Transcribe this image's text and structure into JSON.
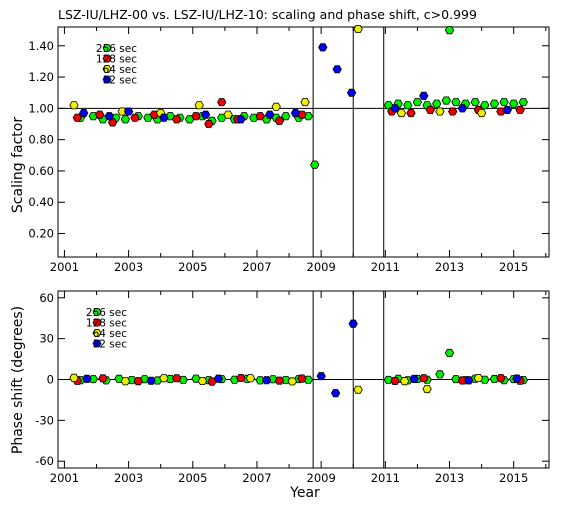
{
  "chart_data": [
    {
      "type": "scatter",
      "title": "LSZ-IU/LHZ-00 vs. LSZ-IU/LHZ-10: scaling and phase shift, c>0.999",
      "xlabel": "",
      "ylabel": "Scaling factor",
      "xlim": [
        2000.8,
        2016.1
      ],
      "ylim": [
        0.05,
        1.52
      ],
      "x_ticks": [
        2001,
        2003,
        2005,
        2007,
        2009,
        2011,
        2013,
        2015
      ],
      "x_tick_labels": [
        "2001",
        "2003",
        "2005",
        "2007",
        "2009",
        "2011",
        "2013",
        "2015"
      ],
      "y_ticks": [
        0.2,
        0.4,
        0.6,
        0.8,
        1.0,
        1.2,
        1.4
      ],
      "y_tick_labels": [
        "0.20",
        "0.40",
        "0.60",
        "0.80",
        "1.00",
        "1.20",
        "1.40"
      ],
      "reference_line": 1.0,
      "vertical_lines": [
        2008.75,
        2010.0,
        2010.95
      ],
      "legend_position": "top-left",
      "series": [
        {
          "name": "256 sec",
          "color": "#00ee00",
          "points": [
            [
              2001.5,
              0.94
            ],
            [
              2001.9,
              0.95
            ],
            [
              2002.2,
              0.93
            ],
            [
              2002.6,
              0.94
            ],
            [
              2002.9,
              0.93
            ],
            [
              2003.3,
              0.95
            ],
            [
              2003.6,
              0.94
            ],
            [
              2003.9,
              0.93
            ],
            [
              2004.3,
              0.95
            ],
            [
              2004.6,
              0.94
            ],
            [
              2004.9,
              0.93
            ],
            [
              2005.3,
              0.95
            ],
            [
              2005.6,
              0.92
            ],
            [
              2005.9,
              0.94
            ],
            [
              2006.3,
              0.93
            ],
            [
              2006.6,
              0.95
            ],
            [
              2006.9,
              0.94
            ],
            [
              2007.3,
              0.93
            ],
            [
              2007.6,
              0.94
            ],
            [
              2007.9,
              0.95
            ],
            [
              2008.3,
              0.94
            ],
            [
              2008.6,
              0.95
            ],
            [
              2008.8,
              0.64
            ],
            [
              2011.1,
              1.02
            ],
            [
              2011.4,
              1.03
            ],
            [
              2011.7,
              1.02
            ],
            [
              2012.0,
              1.04
            ],
            [
              2012.3,
              1.02
            ],
            [
              2012.6,
              1.03
            ],
            [
              2012.9,
              1.05
            ],
            [
              2013.0,
              1.5
            ],
            [
              2013.2,
              1.04
            ],
            [
              2013.5,
              1.03
            ],
            [
              2013.8,
              1.04
            ],
            [
              2014.1,
              1.02
            ],
            [
              2014.4,
              1.03
            ],
            [
              2014.7,
              1.04
            ],
            [
              2015.0,
              1.03
            ],
            [
              2015.3,
              1.04
            ]
          ]
        },
        {
          "name": "128 sec",
          "color": "#ee0000",
          "points": [
            [
              2001.4,
              0.94
            ],
            [
              2002.1,
              0.96
            ],
            [
              2002.5,
              0.91
            ],
            [
              2003.2,
              0.94
            ],
            [
              2003.8,
              0.96
            ],
            [
              2004.5,
              0.93
            ],
            [
              2005.1,
              0.95
            ],
            [
              2005.5,
              0.9
            ],
            [
              2005.9,
              1.04
            ],
            [
              2006.4,
              0.93
            ],
            [
              2007.1,
              0.95
            ],
            [
              2007.7,
              0.92
            ],
            [
              2008.4,
              0.96
            ],
            [
              2011.2,
              0.98
            ],
            [
              2011.8,
              0.97
            ],
            [
              2012.4,
              0.99
            ],
            [
              2013.1,
              0.98
            ],
            [
              2013.9,
              0.99
            ],
            [
              2014.6,
              0.98
            ],
            [
              2015.2,
              0.99
            ]
          ]
        },
        {
          "name": "64 sec",
          "color": "#eeee00",
          "points": [
            [
              2001.3,
              1.02
            ],
            [
              2002.8,
              0.98
            ],
            [
              2004.0,
              0.97
            ],
            [
              2005.2,
              1.02
            ],
            [
              2006.1,
              0.96
            ],
            [
              2007.6,
              1.01
            ],
            [
              2008.5,
              1.04
            ],
            [
              2010.15,
              1.51
            ],
            [
              2011.5,
              0.97
            ],
            [
              2012.7,
              0.98
            ],
            [
              2014.0,
              0.97
            ]
          ]
        },
        {
          "name": "32 sec",
          "color": "#0000ee",
          "points": [
            [
              2001.6,
              0.97
            ],
            [
              2002.4,
              0.95
            ],
            [
              2003.0,
              0.98
            ],
            [
              2004.1,
              0.94
            ],
            [
              2005.4,
              0.96
            ],
            [
              2006.5,
              0.93
            ],
            [
              2007.4,
              0.96
            ],
            [
              2008.2,
              0.97
            ],
            [
              2009.05,
              1.39
            ],
            [
              2009.5,
              1.25
            ],
            [
              2009.95,
              1.1
            ],
            [
              2011.3,
              1.0
            ],
            [
              2012.2,
              1.08
            ],
            [
              2013.4,
              1.0
            ],
            [
              2014.8,
              0.99
            ]
          ]
        }
      ]
    },
    {
      "type": "scatter",
      "title": "",
      "xlabel": "Year",
      "ylabel": "Phase shift (degrees)",
      "xlim": [
        2000.8,
        2016.1
      ],
      "ylim": [
        -65,
        65
      ],
      "x_ticks": [
        2001,
        2003,
        2005,
        2007,
        2009,
        2011,
        2013,
        2015
      ],
      "x_tick_labels": [
        "2001",
        "2003",
        "2005",
        "2007",
        "2009",
        "2011",
        "2013",
        "2015"
      ],
      "y_ticks": [
        -60,
        -30,
        0,
        30,
        60
      ],
      "y_tick_labels": [
        "-60",
        "-30",
        "0",
        "30",
        "60"
      ],
      "reference_line": 0,
      "vertical_lines": [
        2008.75,
        2010.0,
        2010.95
      ],
      "legend_position": "top-left",
      "series": [
        {
          "name": "256 sec",
          "color": "#00ee00",
          "points": [
            [
              2001.5,
              -0.5
            ],
            [
              2001.9,
              0.3
            ],
            [
              2002.3,
              -0.6
            ],
            [
              2002.7,
              0.5
            ],
            [
              2003.1,
              -0.4
            ],
            [
              2003.5,
              0.2
            ],
            [
              2003.9,
              -0.7
            ],
            [
              2004.3,
              0.4
            ],
            [
              2004.7,
              -0.3
            ],
            [
              2005.1,
              0.6
            ],
            [
              2005.5,
              -0.5
            ],
            [
              2005.9,
              0.3
            ],
            [
              2006.3,
              -0.2
            ],
            [
              2006.7,
              0.5
            ],
            [
              2007.1,
              -0.6
            ],
            [
              2007.5,
              0.2
            ],
            [
              2007.9,
              -0.4
            ],
            [
              2008.3,
              0.3
            ],
            [
              2008.6,
              -0.2
            ],
            [
              2011.1,
              -0.3
            ],
            [
              2011.4,
              0.5
            ],
            [
              2011.7,
              -0.6
            ],
            [
              2012.0,
              0.4
            ],
            [
              2012.3,
              -0.2
            ],
            [
              2012.7,
              3.8
            ],
            [
              2013.0,
              19.5
            ],
            [
              2013.2,
              0.3
            ],
            [
              2013.5,
              -0.5
            ],
            [
              2013.8,
              0.6
            ],
            [
              2014.1,
              -0.2
            ],
            [
              2014.4,
              0.4
            ],
            [
              2014.7,
              -0.5
            ],
            [
              2015.0,
              0.3
            ],
            [
              2015.3,
              -0.4
            ]
          ]
        },
        {
          "name": "128 sec",
          "color": "#ee0000",
          "points": [
            [
              2001.4,
              -1.0
            ],
            [
              2002.2,
              0.8
            ],
            [
              2003.3,
              -1.2
            ],
            [
              2004.5,
              0.9
            ],
            [
              2005.6,
              -1.5
            ],
            [
              2006.5,
              1.1
            ],
            [
              2007.7,
              -0.8
            ],
            [
              2008.4,
              0.7
            ],
            [
              2011.3,
              -1.1
            ],
            [
              2012.2,
              0.9
            ],
            [
              2013.4,
              -0.7
            ],
            [
              2014.6,
              1.0
            ],
            [
              2015.2,
              -0.9
            ]
          ]
        },
        {
          "name": "64 sec",
          "color": "#eeee00",
          "points": [
            [
              2001.3,
              1.2
            ],
            [
              2002.9,
              -1.3
            ],
            [
              2004.1,
              1.0
            ],
            [
              2005.3,
              -1.1
            ],
            [
              2006.8,
              0.9
            ],
            [
              2008.1,
              -1.4
            ],
            [
              2010.15,
              -7.5
            ],
            [
              2011.6,
              -1.2
            ],
            [
              2012.3,
              -7.0
            ],
            [
              2013.9,
              1.1
            ]
          ]
        },
        {
          "name": "32 sec",
          "color": "#0000ee",
          "points": [
            [
              2001.7,
              0.5
            ],
            [
              2003.7,
              -0.9
            ],
            [
              2005.8,
              0.6
            ],
            [
              2007.3,
              -0.5
            ],
            [
              2009.0,
              2.5
            ],
            [
              2009.45,
              -10.0
            ],
            [
              2010.0,
              41.0
            ],
            [
              2011.9,
              0.4
            ],
            [
              2013.6,
              -0.6
            ],
            [
              2015.1,
              0.7
            ]
          ]
        }
      ]
    }
  ]
}
